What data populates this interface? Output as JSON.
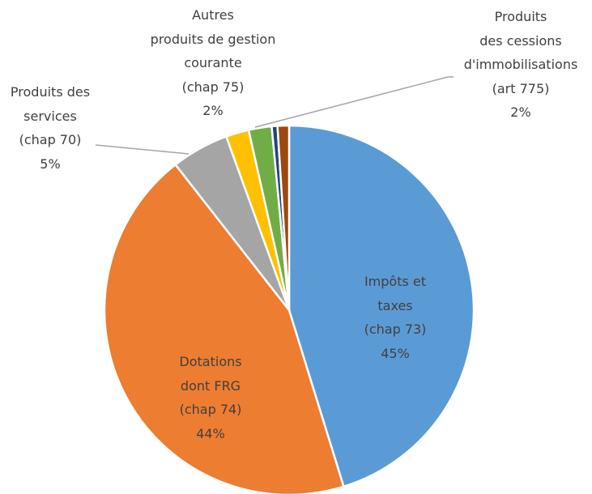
{
  "chart_data": {
    "type": "pie",
    "categories": [
      "Impôts et\ntaxes\n(chap 73)",
      "Dotations\ndont FRG\n(chap 74)",
      "Produits des\nservices\n(chap 70)",
      "Autres\nproduits de gestion\ncourante\n(chap 75)",
      "Produits\ndes cessions\nd'immobilisations\n(art 775)",
      null,
      null
    ],
    "values": [
      45,
      44,
      5,
      2,
      2,
      0.5,
      1
    ],
    "value_labels": [
      "45%",
      "44%",
      "5%",
      "2%",
      "2%",
      null,
      null
    ],
    "colors": [
      "#5b9bd5",
      "#ed7d31",
      "#a5a5a5",
      "#ffc000",
      "#70ad47",
      "#264478",
      "#9e480e"
    ]
  }
}
